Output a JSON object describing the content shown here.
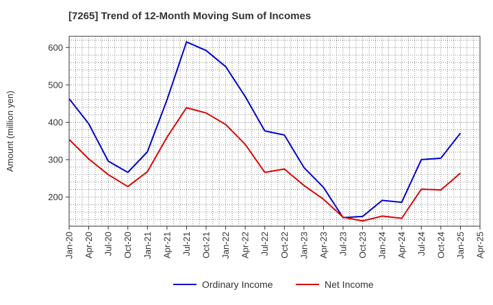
{
  "chart_data": {
    "type": "line",
    "title": "[7265]  Trend of 12-Month Moving Sum of Incomes",
    "xlabel": "",
    "ylabel": "Amount (million yen)",
    "ylim": [
      122,
      630
    ],
    "yticks": [
      200,
      300,
      400,
      500,
      600
    ],
    "categories": [
      "Jan-20",
      "Apr-20",
      "Jul-20",
      "Oct-20",
      "Jan-21",
      "Apr-21",
      "Jul-21",
      "Oct-21",
      "Jan-22",
      "Apr-22",
      "Jul-22",
      "Oct-22",
      "Jan-23",
      "Apr-23",
      "Jul-23",
      "Oct-23",
      "Jan-24",
      "Apr-24",
      "Jul-24",
      "Oct-24",
      "Jan-25",
      "Apr-25"
    ],
    "grid": true,
    "legend_position": "bottom",
    "series": [
      {
        "name": "Ordinary Income",
        "color": "#0000cc",
        "values": [
          463,
          396,
          296,
          266,
          321,
          460,
          615,
          592,
          549,
          469,
          377,
          366,
          279,
          226,
          145,
          148,
          191,
          186,
          300,
          304,
          371,
          null
        ]
      },
      {
        "name": "Net Income",
        "color": "#dd0000",
        "values": [
          354,
          302,
          260,
          228,
          268,
          360,
          439,
          425,
          394,
          341,
          266,
          275,
          231,
          194,
          146,
          136,
          149,
          143,
          221,
          219,
          264,
          null
        ]
      }
    ]
  }
}
